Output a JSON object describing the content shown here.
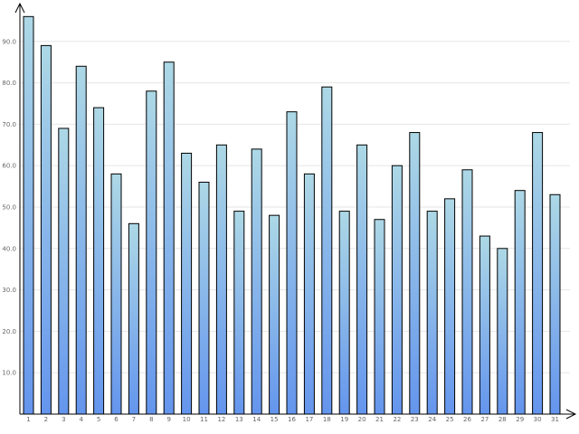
{
  "chart_data": {
    "type": "bar",
    "title": "",
    "xlabel": "",
    "ylabel": "",
    "categories": [
      "1",
      "2",
      "3",
      "4",
      "5",
      "6",
      "7",
      "8",
      "9",
      "10",
      "11",
      "12",
      "13",
      "14",
      "15",
      "16",
      "17",
      "18",
      "19",
      "20",
      "21",
      "22",
      "23",
      "24",
      "25",
      "26",
      "27",
      "28",
      "29",
      "30",
      "31"
    ],
    "values": [
      96,
      89,
      69,
      84,
      74,
      58,
      46,
      78,
      85,
      63,
      56,
      65,
      49,
      64,
      48,
      73,
      58,
      79,
      49,
      65,
      47,
      60,
      68,
      49,
      52,
      59,
      43,
      40,
      54,
      68,
      53
    ],
    "ylim": [
      0,
      100
    ],
    "yticks": [
      10,
      20,
      30,
      40,
      50,
      60,
      70,
      80,
      90
    ],
    "grid": true,
    "legend": "none",
    "colors": {
      "bar_top": "#add8e6",
      "bar_bottom": "#6495ed",
      "bar_border": "#000000",
      "grid": "#e6e6e6",
      "axis": "#000000",
      "tick_text": "#666666"
    }
  }
}
